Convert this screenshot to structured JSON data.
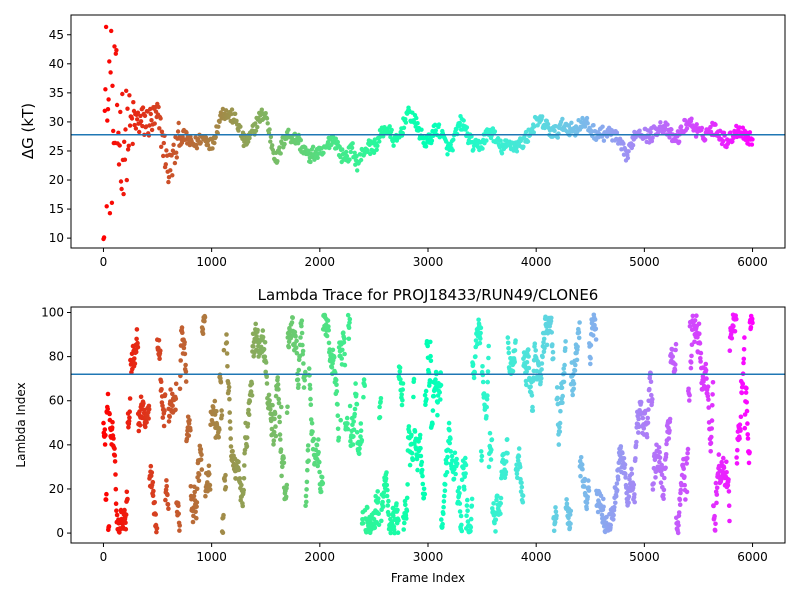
{
  "chart_data": [
    {
      "type": "scatter",
      "title": "",
      "xlabel": "",
      "ylabel": "ΔG (kT)",
      "xlim": [
        -300,
        6300
      ],
      "ylim": [
        8.3,
        48.4
      ],
      "xticks": [
        0,
        1000,
        2000,
        3000,
        4000,
        5000,
        6000
      ],
      "yticks": [
        10,
        15,
        20,
        25,
        30,
        35,
        40,
        45
      ],
      "hline": 27.8,
      "hline_color": "#1f77b4",
      "colormap": "rainbow",
      "n_frames": 6000,
      "series_trace": [
        [
          0,
          30
        ],
        [
          100,
          29
        ],
        [
          200,
          28
        ],
        [
          300,
          29
        ],
        [
          400,
          31
        ],
        [
          500,
          30
        ],
        [
          600,
          22
        ],
        [
          650,
          25
        ],
        [
          700,
          27
        ],
        [
          800,
          26
        ],
        [
          900,
          28
        ],
        [
          1000,
          25
        ],
        [
          1100,
          33
        ],
        [
          1200,
          30
        ],
        [
          1300,
          27
        ],
        [
          1400,
          29
        ],
        [
          1500,
          31
        ],
        [
          1600,
          24
        ],
        [
          1700,
          27
        ],
        [
          1800,
          28
        ],
        [
          1900,
          23
        ],
        [
          2000,
          25
        ],
        [
          2100,
          27
        ],
        [
          2200,
          24
        ],
        [
          2300,
          26
        ],
        [
          2350,
          22
        ],
        [
          2450,
          26
        ],
        [
          2600,
          28
        ],
        [
          2700,
          27
        ],
        [
          2800,
          31
        ],
        [
          2900,
          29
        ],
        [
          3000,
          27
        ],
        [
          3100,
          28
        ],
        [
          3200,
          26
        ],
        [
          3300,
          29
        ],
        [
          3400,
          27
        ],
        [
          3500,
          26
        ],
        [
          3600,
          28
        ],
        [
          3700,
          26
        ],
        [
          3800,
          25
        ],
        [
          3900,
          28
        ],
        [
          4000,
          29
        ],
        [
          4100,
          30
        ],
        [
          4200,
          28
        ],
        [
          4300,
          29
        ],
        [
          4400,
          30
        ],
        [
          4500,
          28
        ],
        [
          4600,
          29
        ],
        [
          4700,
          27
        ],
        [
          4800,
          26
        ],
        [
          4850,
          25
        ],
        [
          4900,
          27
        ],
        [
          5000,
          28
        ],
        [
          5100,
          29
        ],
        [
          5200,
          28
        ],
        [
          5300,
          28
        ],
        [
          5400,
          29
        ],
        [
          5500,
          29
        ],
        [
          5600,
          28
        ],
        [
          5700,
          28
        ],
        [
          5800,
          27.5
        ],
        [
          5900,
          27.8
        ],
        [
          6000,
          28
        ]
      ]
    },
    {
      "type": "scatter",
      "title": "Lambda Trace for PROJ18433/RUN49/CLONE6",
      "xlabel": "Frame Index",
      "ylabel": "Lambda Index",
      "xlim": [
        -300,
        6300
      ],
      "ylim": [
        -4.5,
        102.5
      ],
      "xticks": [
        0,
        1000,
        2000,
        3000,
        4000,
        5000,
        6000
      ],
      "yticks": [
        0,
        20,
        40,
        60,
        80,
        100
      ],
      "hline": 72,
      "hline_color": "#1f77b4",
      "colormap": "rainbow",
      "n_frames": 6000
    }
  ]
}
